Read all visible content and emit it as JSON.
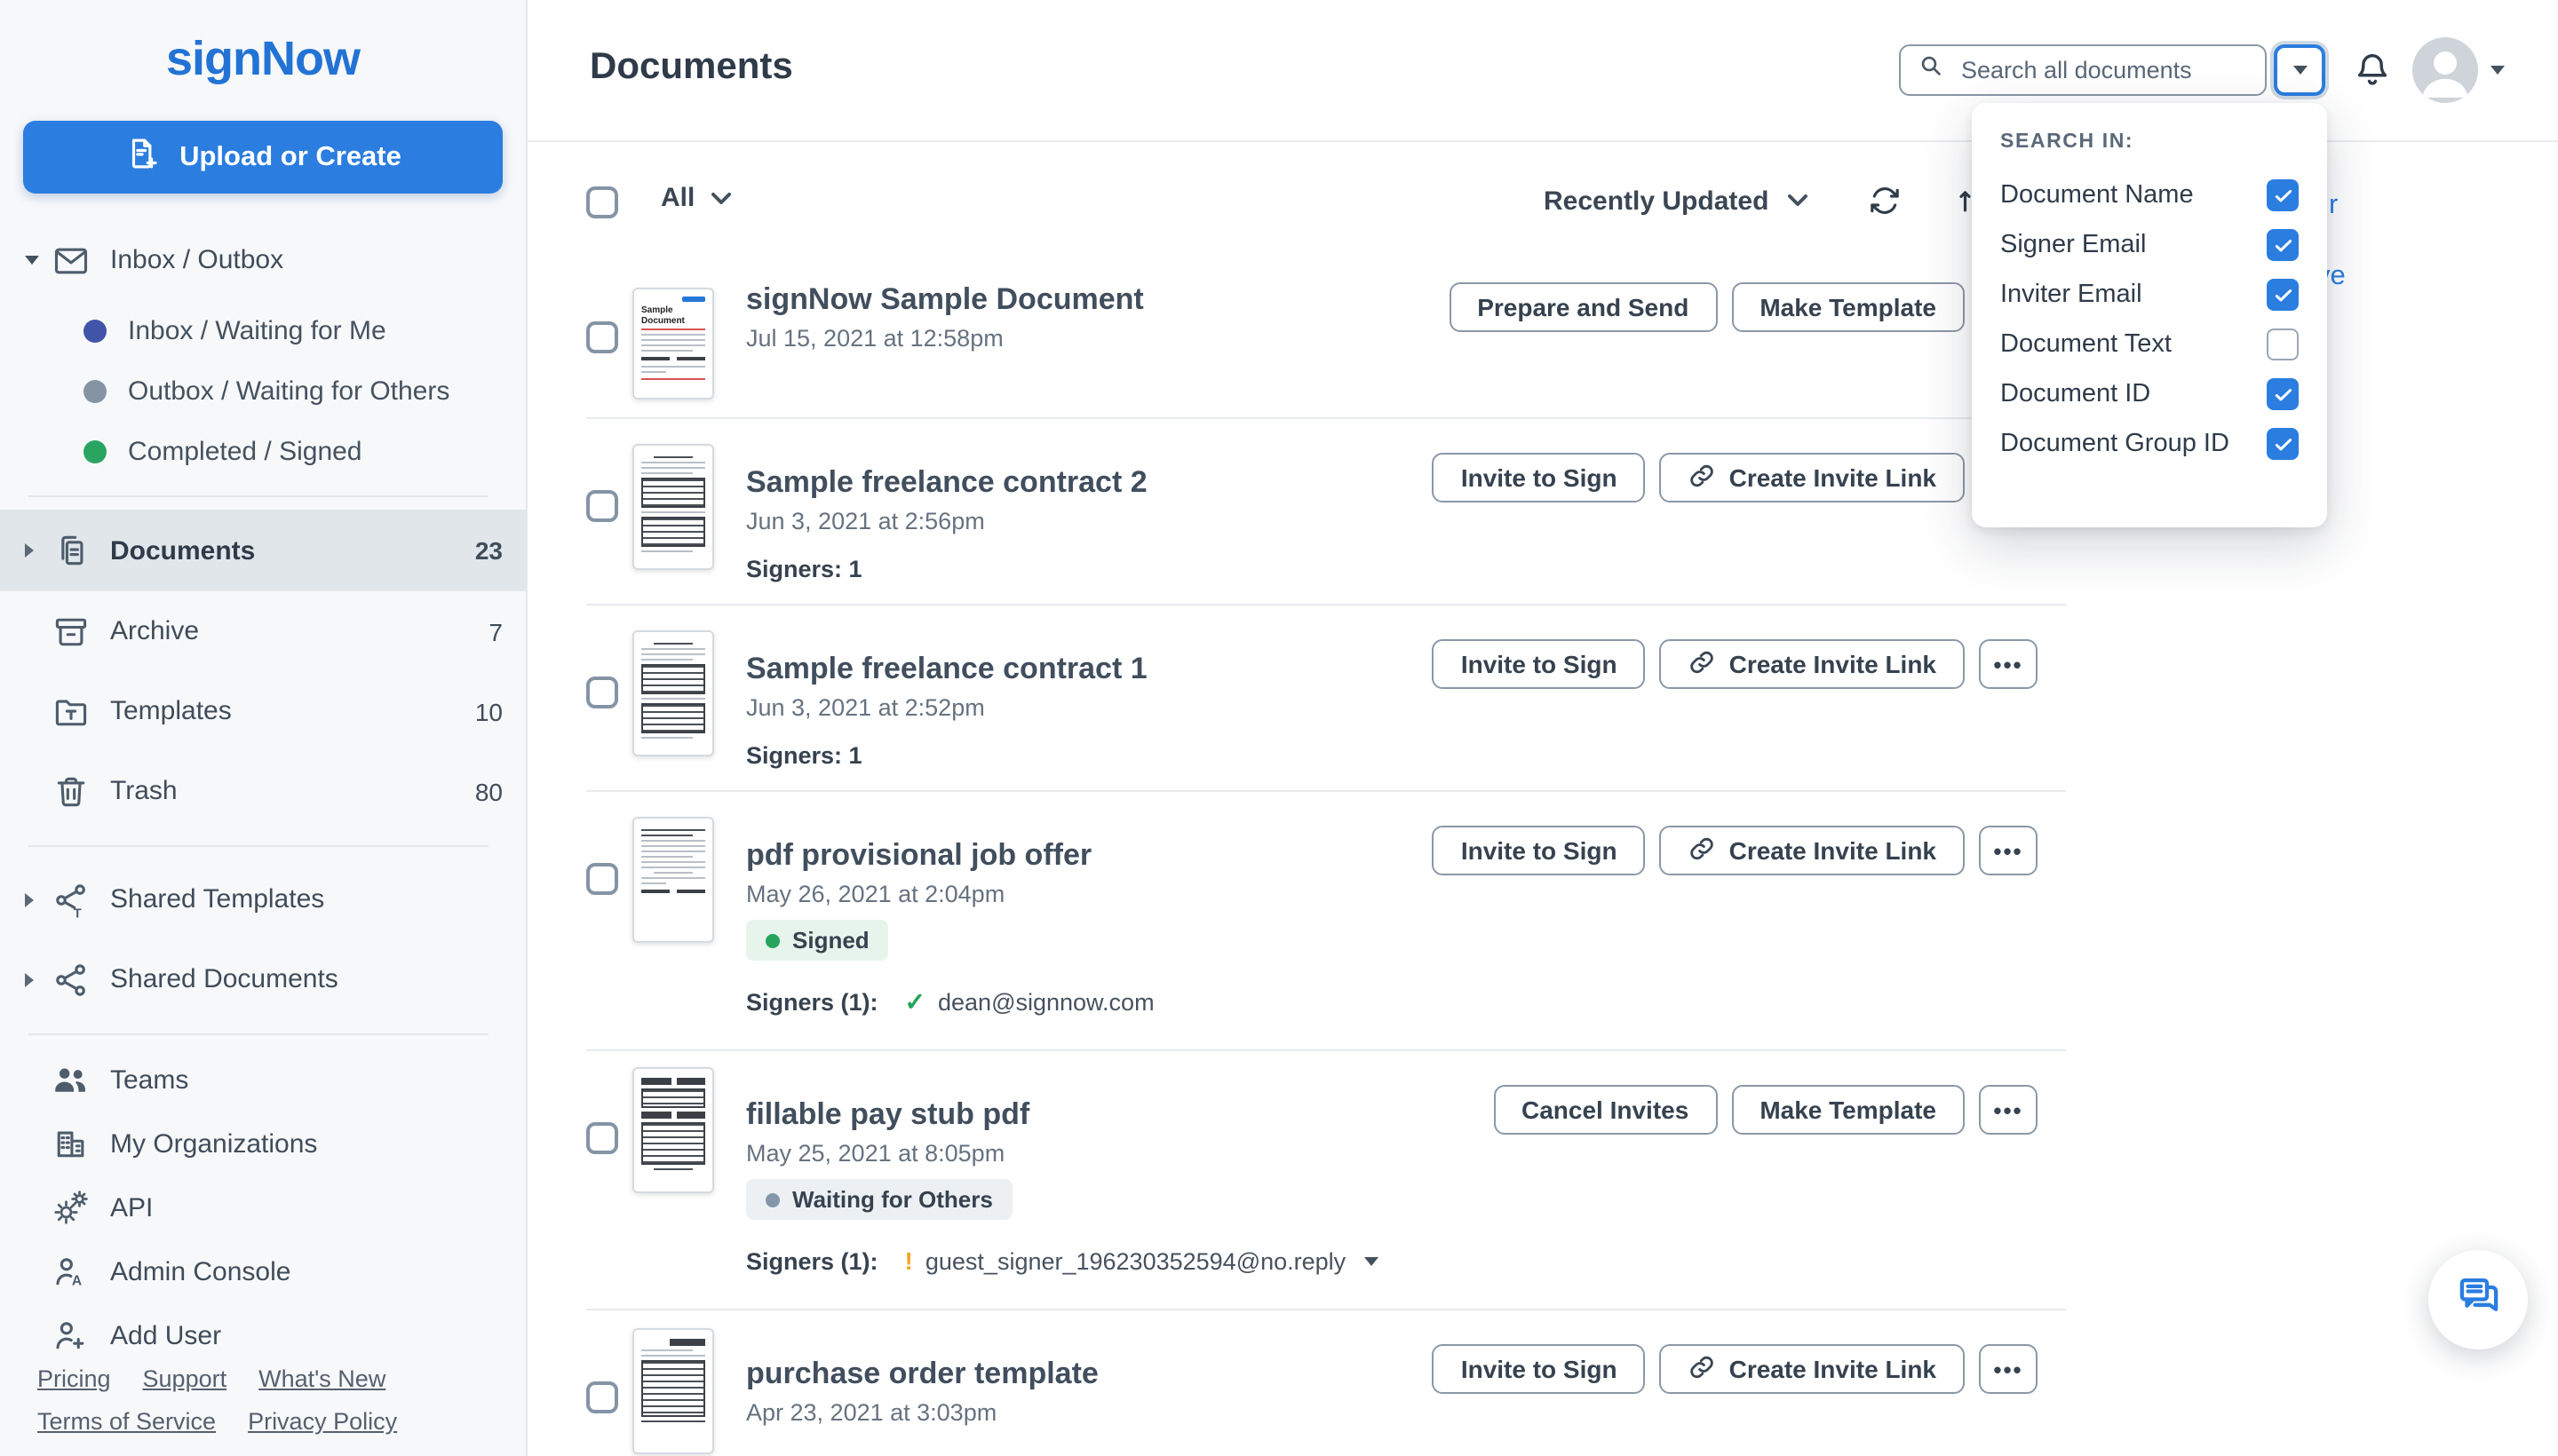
{
  "brand": {
    "logo_text": "signNow"
  },
  "colors": {
    "accent": "#2b7de0",
    "logo_blue": "#2373d5",
    "signed_green": "#27a45c",
    "waiting_gray": "#8396aa",
    "warning_orange": "#f5a623"
  },
  "sidebar": {
    "upload_button_label": "Upload or Create",
    "nav": [
      {
        "id": "inbox-outbox",
        "label": "Inbox / Outbox",
        "icon": "envelope-icon",
        "caret": "down",
        "children": [
          {
            "id": "inbox-waiting-for-me",
            "label": "Inbox / Waiting for Me",
            "dot": "#4054a8"
          },
          {
            "id": "outbox-waiting-for-others",
            "label": "Outbox / Waiting for Others",
            "dot": "#8494a5"
          },
          {
            "id": "completed-signed",
            "label": "Completed / Signed",
            "dot": "#2aa561"
          }
        ]
      },
      {
        "divider": true
      },
      {
        "id": "documents",
        "label": "Documents",
        "icon": "documents-icon",
        "caret": "right",
        "count": "23",
        "selected": true
      },
      {
        "id": "archive",
        "label": "Archive",
        "icon": "archive-icon",
        "count": "7"
      },
      {
        "id": "templates",
        "label": "Templates",
        "icon": "templates-icon",
        "count": "10"
      },
      {
        "id": "trash",
        "label": "Trash",
        "icon": "trash-icon",
        "count": "80"
      },
      {
        "divider": true
      },
      {
        "id": "shared-templates",
        "label": "Shared Templates",
        "icon": "shared-templates-icon",
        "caret": "right"
      },
      {
        "id": "shared-documents",
        "label": "Shared Documents",
        "icon": "shared-documents-icon",
        "caret": "right"
      },
      {
        "divider": true
      },
      {
        "id": "teams",
        "label": "Teams",
        "icon": "teams-icon",
        "compact": true
      },
      {
        "id": "my-organizations",
        "label": "My Organizations",
        "icon": "organizations-icon",
        "compact": true
      },
      {
        "id": "api",
        "label": "API",
        "icon": "api-icon",
        "compact": true
      },
      {
        "id": "admin-console",
        "label": "Admin Console",
        "icon": "admin-console-icon",
        "compact": true
      },
      {
        "id": "add-user",
        "label": "Add User",
        "icon": "add-user-icon",
        "compact": true
      }
    ],
    "footer_links_row1": [
      "Pricing",
      "Support",
      "What's New"
    ],
    "footer_links_row2": [
      "Terms of Service",
      "Privacy Policy"
    ]
  },
  "header": {
    "page_title": "Documents",
    "search_placeholder": "Search all documents",
    "search_value": ""
  },
  "toolbar": {
    "filter_label": "All",
    "sort_label": "Recently Updated"
  },
  "search_panel": {
    "title": "SEARCH IN:",
    "options": [
      {
        "label": "Document Name",
        "checked": true
      },
      {
        "label": "Signer Email",
        "checked": true
      },
      {
        "label": "Inviter Email",
        "checked": true
      },
      {
        "label": "Document Text",
        "checked": false
      },
      {
        "label": "Document ID",
        "checked": true
      },
      {
        "label": "Document Group ID",
        "checked": true
      }
    ],
    "clipped_text_fragments": [
      "r",
      "ve"
    ]
  },
  "documents_ui": {
    "more_button_label": "•••"
  },
  "documents": [
    {
      "title": "signNow Sample Document",
      "date": "Jul 15, 2021 at 12:58pm",
      "thumb": "sample",
      "buttons": [
        {
          "label": "Prepare and Send"
        },
        {
          "label": "Make Template"
        }
      ],
      "more": true
    },
    {
      "title": "Sample freelance contract 2",
      "date": "Jun 3, 2021 at 2:56pm",
      "signers_simple": "Signers: 1",
      "thumb": "contract",
      "buttons": [
        {
          "label": "Invite to Sign"
        },
        {
          "label": "Create Invite Link",
          "icon": "link-icon"
        }
      ],
      "more": true
    },
    {
      "title": "Sample freelance contract 1",
      "date": "Jun 3, 2021 at 2:52pm",
      "signers_simple": "Signers: 1",
      "thumb": "contract",
      "buttons": [
        {
          "label": "Invite to Sign"
        },
        {
          "label": "Create Invite Link",
          "icon": "link-icon"
        }
      ],
      "more": true
    },
    {
      "title": "pdf provisional job offer",
      "date": "May 26, 2021 at 2:04pm",
      "thumb": "letter",
      "badge": {
        "label": "Signed",
        "type": "signed"
      },
      "signers_label": "Signers (1):",
      "signer": {
        "email": "dean@signnow.com",
        "status": "signed"
      },
      "buttons": [
        {
          "label": "Invite to Sign"
        },
        {
          "label": "Create Invite Link",
          "icon": "link-icon"
        }
      ],
      "more": true
    },
    {
      "title": "fillable pay stub pdf",
      "date": "May 25, 2021 at 8:05pm",
      "thumb": "paystub",
      "badge": {
        "label": "Waiting for Others",
        "type": "waiting"
      },
      "signers_label": "Signers (1):",
      "signer": {
        "email": "guest_signer_196230352594@no.reply",
        "status": "warning",
        "caret": true
      },
      "buttons": [
        {
          "label": "Cancel Invites"
        },
        {
          "label": "Make Template"
        }
      ],
      "more": true
    },
    {
      "title": "purchase order template",
      "date": "Apr 23, 2021 at 3:03pm",
      "thumb": "po",
      "buttons": [
        {
          "label": "Invite to Sign"
        },
        {
          "label": "Create Invite Link",
          "icon": "link-icon"
        }
      ],
      "more": true
    }
  ]
}
